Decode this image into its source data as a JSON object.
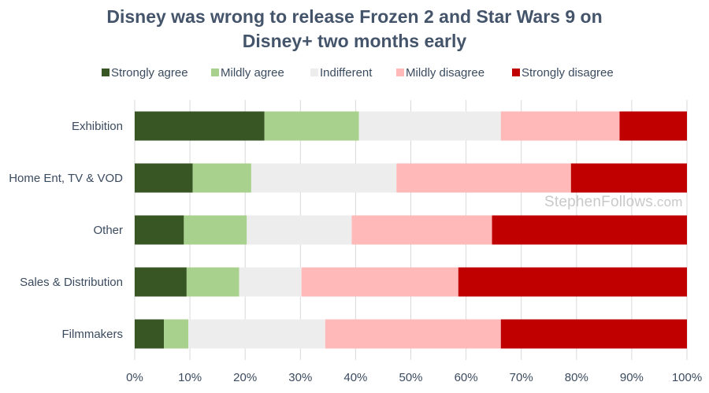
{
  "chart_data": {
    "type": "bar",
    "orientation": "horizontal",
    "stacked": true,
    "title_lines": [
      "Disney was wrong to release Frozen 2 and Star Wars 9 on",
      "Disney+ two months early"
    ],
    "categories": [
      "Exhibition",
      "Home Ent, TV & VOD",
      "Other",
      "Sales & Distribution",
      "Filmmakers"
    ],
    "series": [
      {
        "name": "Strongly agree",
        "color": "#375623",
        "values": [
          23.5,
          10.5,
          8.9,
          9.4,
          5.3
        ]
      },
      {
        "name": "Mildly agree",
        "color": "#a9d18e",
        "values": [
          17.1,
          10.6,
          11.4,
          9.5,
          4.4
        ]
      },
      {
        "name": "Indifferent",
        "color": "#ededed",
        "values": [
          25.7,
          26.3,
          19.0,
          11.3,
          24.8
        ]
      },
      {
        "name": "Mildly disagree",
        "color": "#ffb9b9",
        "values": [
          21.5,
          31.6,
          25.4,
          28.4,
          31.8
        ]
      },
      {
        "name": "Strongly disagree",
        "color": "#c00000",
        "values": [
          12.2,
          21.0,
          35.3,
          41.4,
          33.7
        ]
      }
    ],
    "xlim": [
      0,
      100
    ],
    "x_ticks": [
      "0%",
      "10%",
      "20%",
      "30%",
      "40%",
      "50%",
      "60%",
      "70%",
      "80%",
      "90%",
      "100%"
    ],
    "grid": true,
    "legend_position": "top"
  },
  "watermark": {
    "name": "StephenFollows",
    "domain": ".com"
  }
}
